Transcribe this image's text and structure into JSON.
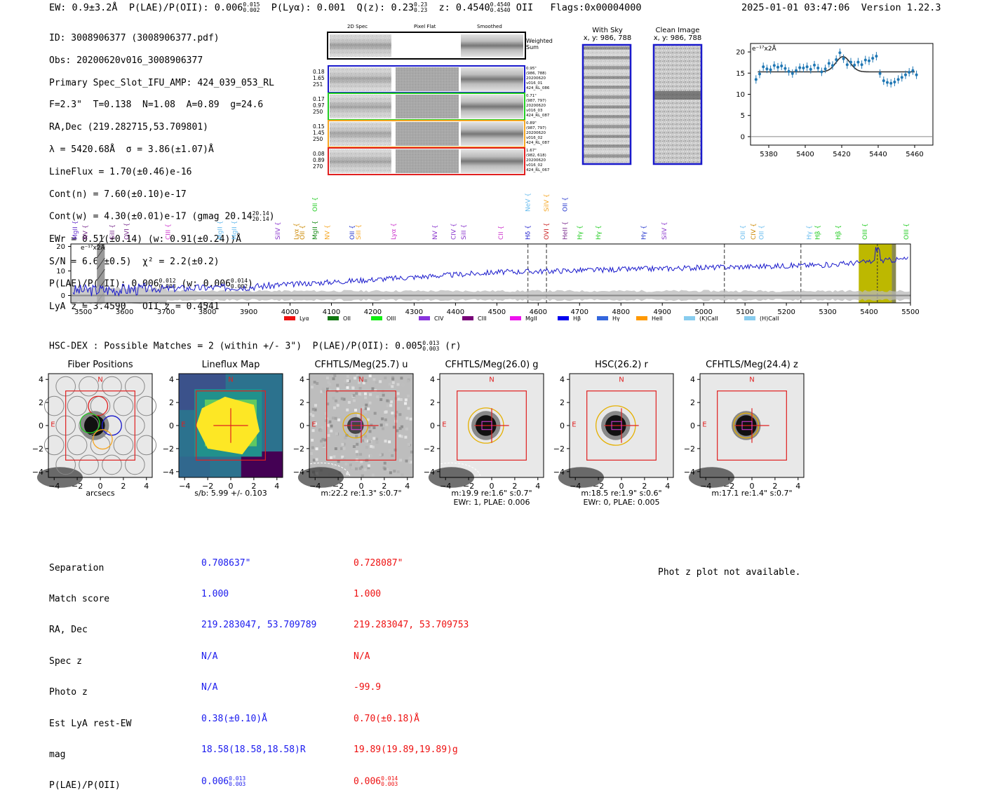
{
  "header": {
    "ew": "EW: 0.9±3.2Å",
    "plae_label": "P(LAE)/P(OII): 0.006",
    "plae_sup": "0.015",
    "plae_sub": "0.002",
    "plya": "P(Lyα): 0.001",
    "q_label": "Q(z): 0.23",
    "q_sup": "0.23",
    "q_sub": "0.23",
    "z_label": "z: 0.4540",
    "z_sup": "0.4540",
    "z_sub": "0.4540",
    "z_line": "OII",
    "flags": "Flags:0x00004000",
    "timestamp": "2025-01-01 03:47:06",
    "version": "Version 1.22.3"
  },
  "info": {
    "id": "ID: 3008906377 (3008906377.pdf)",
    "obs": "Obs: 20200620v016_3008906377",
    "primary": "Primary Spec_Slot_IFU_AMP: 424_039_053_RL",
    "fit": "F=2.3\"  T=0.138  N=1.08  A=0.89  g=24.6",
    "radec": "RA,Dec (219.282715,53.709801)",
    "lambda": "λ = 5420.68Å  σ = 3.86(±1.07)Å",
    "lineflux": "LineFlux = 1.70(±0.46)e-16",
    "contn": "Cont(n) = 7.60(±0.10)e-17",
    "contw": "Cont(w) = 4.30(±0.01)e-17 (gmag 20.14",
    "contw_sup": "20.14",
    "contw_sub": "20.14",
    "contw_end": ")",
    "ewr": "EWr = 0.51(±0.14) (w: 0.91(±0.24))Å",
    "sn": "S/N = 6.6(±0.5)  χ² = 2.2(±0.2)",
    "plae_a": "P(LAE)/P(OII): 0.006",
    "plae_a_sup": "0.012",
    "plae_a_sub": "0.003",
    "plae_b": "(w: 0.006",
    "plae_b_sup": "0.014",
    "plae_b_sub": "0.002",
    "plae_b_end": ")",
    "lya": "LyA z = 3.4590   OII z = 0.4541"
  },
  "spec2d": {
    "col_labels": [
      "2D Spec",
      "Pixel Flat",
      "Smoothed"
    ],
    "weighted": "Weighted Sum",
    "rows": [
      {
        "stats": [
          "0.18",
          "1.65",
          "251"
        ],
        "color": "#1a1acc",
        "note": [
          "0.95\"",
          "(986, 788)",
          "20200620",
          "v016_01",
          "424_RL_086"
        ]
      },
      {
        "stats": [
          "0.17",
          "0.97",
          "250"
        ],
        "color": "#22cc22",
        "note": [
          "0.71\"",
          "(987, 797)",
          "20200620",
          "v016_03",
          "424_RL_087"
        ]
      },
      {
        "stats": [
          "0.15",
          "1.45",
          "250"
        ],
        "color": "#f5a623",
        "note": [
          "0.89\"",
          "(987, 797)",
          "20200620",
          "v016_02",
          "424_RL_087"
        ]
      },
      {
        "stats": [
          "0.08",
          "0.89",
          "270"
        ],
        "color": "#e02020",
        "note": [
          "1.67\"",
          "(982, 618)",
          "20200620",
          "v016_02",
          "424_RL_067"
        ]
      }
    ]
  },
  "stamps": {
    "with_sky": "With Sky",
    "with_sky_xy": "x, y: 986, 788",
    "clean": "Clean Image",
    "clean_xy": "x, y: 986, 788"
  },
  "zoom_plot": {
    "ylabel": "e⁻¹⁷x2Å",
    "yticks": [
      "0",
      "5",
      "10",
      "15",
      "20"
    ],
    "xticks": [
      "5380",
      "5400",
      "5420",
      "5440",
      "5460"
    ],
    "xrange": [
      5370,
      5470
    ],
    "yrange": [
      -2,
      22
    ],
    "points": [
      [
        5373,
        13.5
      ],
      [
        5375,
        14.8
      ],
      [
        5377,
        16.5
      ],
      [
        5379,
        16.0
      ],
      [
        5381,
        15.8
      ],
      [
        5383,
        16.8
      ],
      [
        5385,
        16.4
      ],
      [
        5387,
        16.7
      ],
      [
        5389,
        16.1
      ],
      [
        5391,
        15.4
      ],
      [
        5393,
        14.9
      ],
      [
        5395,
        15.6
      ],
      [
        5397,
        16.3
      ],
      [
        5399,
        16.2
      ],
      [
        5401,
        16.5
      ],
      [
        5403,
        15.9
      ],
      [
        5405,
        16.9
      ],
      [
        5407,
        16.2
      ],
      [
        5409,
        15.3
      ],
      [
        5411,
        16.0
      ],
      [
        5413,
        17.3
      ],
      [
        5415,
        16.8
      ],
      [
        5417,
        18.2
      ],
      [
        5419,
        19.8
      ],
      [
        5421,
        18.4
      ],
      [
        5423,
        17.0
      ],
      [
        5425,
        17.6
      ],
      [
        5427,
        16.9
      ],
      [
        5429,
        17.6
      ],
      [
        5431,
        17.0
      ],
      [
        5433,
        18.1
      ],
      [
        5435,
        17.9
      ],
      [
        5437,
        18.5
      ],
      [
        5439,
        19.0
      ],
      [
        5441,
        14.9
      ],
      [
        5443,
        13.2
      ],
      [
        5445,
        12.8
      ],
      [
        5447,
        12.6
      ],
      [
        5449,
        12.9
      ],
      [
        5451,
        13.5
      ],
      [
        5453,
        14.0
      ],
      [
        5455,
        14.6
      ],
      [
        5457,
        15.2
      ],
      [
        5459,
        15.6
      ],
      [
        5461,
        14.6
      ]
    ],
    "fit_base": 15.3,
    "fit_amp": 3.6,
    "fit_center": 5420.7,
    "fit_sigma": 3.86
  },
  "full_spectrum": {
    "ylabel": "e⁻¹⁷x2Å",
    "yticks": [
      "0",
      "10",
      "20"
    ],
    "xticks": [
      "3500",
      "3600",
      "3700",
      "3800",
      "3900",
      "4000",
      "4100",
      "4200",
      "4300",
      "4400",
      "4500",
      "4600",
      "4700",
      "4800",
      "4900",
      "5000",
      "5100",
      "5200",
      "5300",
      "5400",
      "5500"
    ],
    "xrange": [
      3470,
      5500
    ],
    "yrange": [
      -3,
      21
    ],
    "lines_top": [
      {
        "label": "MgII",
        "w": 3480,
        "color": "#6633cc",
        "row": 0
      },
      {
        "label": "NV",
        "w": 3505,
        "color": "#7b2d8e",
        "row": 0
      },
      {
        "label": "SiII",
        "w": 3570,
        "color": "#7b2d8e",
        "row": 0
      },
      {
        "label": "OVI",
        "w": 3605,
        "color": "#7b2d8e",
        "row": 0
      },
      {
        "label": "CIII",
        "w": 3705,
        "color": "#cc33cc",
        "row": 0
      },
      {
        "label": "MgII",
        "w": 3830,
        "color": "#66bbee",
        "row": 0
      },
      {
        "label": "MgII",
        "w": 3865,
        "color": "#66bbee",
        "row": 0
      },
      {
        "label": "SiIV",
        "w": 3970,
        "color": "#8833cc",
        "row": 0
      },
      {
        "label": "Lyα",
        "w": 4015,
        "color": "#cc8800",
        "row": 0
      },
      {
        "label": "OII",
        "w": 4030,
        "color": "#cc8800",
        "row": 0
      },
      {
        "label": "MgII",
        "w": 4060,
        "color": "#118811",
        "row": 0
      },
      {
        "label": "OII",
        "w": 4060,
        "color": "#22cc22",
        "row": 1
      },
      {
        "label": "NV",
        "w": 4090,
        "color": "#f5a623",
        "row": 0
      },
      {
        "label": "OII",
        "w": 4150,
        "color": "#2233cc",
        "row": 0
      },
      {
        "label": "SiII",
        "w": 4165,
        "color": "#f5a623",
        "row": 0
      },
      {
        "label": "Lyα",
        "w": 4250,
        "color": "#cc33cc",
        "row": 0
      },
      {
        "label": "NV",
        "w": 4350,
        "color": "#8833cc",
        "row": 0
      },
      {
        "label": "CIV",
        "w": 4395,
        "color": "#8833cc",
        "row": 0
      },
      {
        "label": "SiII",
        "w": 4420,
        "color": "#8833cc",
        "row": 0
      },
      {
        "label": "CII",
        "w": 4510,
        "color": "#cc33cc",
        "row": 0
      },
      {
        "label": "Hδ",
        "w": 4575,
        "color": "#1a1acc",
        "row": 0
      },
      {
        "label": "NeV",
        "w": 4575,
        "color": "#66bbee",
        "row": 1
      },
      {
        "label": "OVI",
        "w": 4620,
        "color": "#cc2222",
        "row": 0
      },
      {
        "label": "SiIV",
        "w": 4620,
        "color": "#f5a623",
        "row": 1
      },
      {
        "label": "HeII",
        "w": 4665,
        "color": "#7b2d8e",
        "row": 0
      },
      {
        "label": "OII",
        "w": 4665,
        "color": "#2233cc",
        "row": 1
      },
      {
        "label": "Hγ",
        "w": 4700,
        "color": "#22cc22",
        "row": 0
      },
      {
        "label": "Hγ",
        "w": 4745,
        "color": "#22cc22",
        "row": 0
      },
      {
        "label": "Hγ",
        "w": 4855,
        "color": "#2233cc",
        "row": 0
      },
      {
        "label": "SiIV",
        "w": 4905,
        "color": "#8833cc",
        "row": 0
      },
      {
        "label": "OII",
        "w": 5095,
        "color": "#66bbee",
        "row": 0
      },
      {
        "label": "CIV",
        "w": 5120,
        "color": "#cc8800",
        "row": 0
      },
      {
        "label": "OII",
        "w": 5140,
        "color": "#66bbee",
        "row": 0
      },
      {
        "label": "Hγ",
        "w": 5255,
        "color": "#66bbee",
        "row": 0
      },
      {
        "label": "Hβ",
        "w": 5275,
        "color": "#22cc22",
        "row": 0
      },
      {
        "label": "Hβ",
        "w": 5325,
        "color": "#22cc22",
        "row": 0
      },
      {
        "label": "OIII",
        "w": 5390,
        "color": "#22cc22",
        "row": 0
      },
      {
        "label": "OIII",
        "w": 5490,
        "color": "#22cc22",
        "row": 0
      }
    ],
    "dashed": [
      4575,
      4620,
      5050,
      5235
    ],
    "legend": [
      {
        "label": "Lyα",
        "color": "#ee1111"
      },
      {
        "label": "OII",
        "color": "#117711"
      },
      {
        "label": "OIII",
        "color": "#11ee11"
      },
      {
        "label": "CIV",
        "color": "#8833dd"
      },
      {
        "label": "CIII",
        "color": "#770077"
      },
      {
        "label": "MgII",
        "color": "#ee11ee"
      },
      {
        "label": "Hβ",
        "color": "#0000ee"
      },
      {
        "label": "Hγ",
        "color": "#3366dd"
      },
      {
        "label": "HeII",
        "color": "#ff9900"
      },
      {
        "label": "(K)CaII",
        "color": "#88ccee"
      },
      {
        "label": "(H)CaII",
        "color": "#88ccee"
      }
    ]
  },
  "hsc": {
    "title": "HSC-DEX : Possible Matches = 2 (within +/- 3\")  P(LAE)/P(OII): 0.005",
    "sup": "0.013",
    "sub": "0.003",
    "band": "(r)"
  },
  "cutouts": [
    {
      "title": "Fiber Positions",
      "cap1": "arcsecs",
      "cap2": "",
      "kind": "fiber"
    },
    {
      "title": "Lineflux Map",
      "cap1": "s/b: 5.99 +/- 0.103",
      "cap2": "",
      "kind": "flux"
    },
    {
      "title": "CFHTLS/Meg(25.7) u",
      "cap1": "m:22.2  re:1.3\"  s:0.7\"",
      "cap2": "",
      "kind": "noisy"
    },
    {
      "title": "CFHTLS/Meg(26.0) g",
      "cap1": "m:19.9  re:1.6\"  s:0.7\"",
      "cap2": "EWr: 1, PLAE: 0.006",
      "kind": "g"
    },
    {
      "title": "HSC(26.2) r",
      "cap1": "m:18.5  re:1.9\"  s:0.6\"",
      "cap2": "EWr: 0, PLAE: 0.005",
      "kind": "r"
    },
    {
      "title": "CFHTLS/Meg(24.4) z",
      "cap1": "m:17.1  re:1.4\"  s:0.7\"",
      "cap2": "",
      "kind": "z"
    }
  ],
  "cutout_ticks": [
    "4",
    "2",
    "0",
    "−2",
    "−4"
  ],
  "cutout_xticks": [
    "−4",
    "−2",
    "0",
    "2",
    "4"
  ],
  "compass": {
    "n": "N",
    "e": "E"
  },
  "matches": {
    "labels": [
      "Separation",
      "Match score",
      "RA, Dec",
      "Spec z",
      "Photo z",
      "Est LyA rest-EW",
      "mag",
      "P(LAE)/P(OII)"
    ],
    "m1": {
      "color": "#1a1aee",
      "sep": "0.708637\"",
      "score": "1.000",
      "radec": "219.283047, 53.709789",
      "specz": "N/A",
      "photoz": "N/A",
      "ew": "0.38(±0.10)Å",
      "mag": "18.58(18.58,18.58)R",
      "plae": "0.006",
      "sup": "0.013",
      "sub": "0.003"
    },
    "m2": {
      "color": "#ee1111",
      "sep": "0.728087\"",
      "score": "1.000",
      "radec": "219.283047, 53.709753",
      "specz": "N/A",
      "photoz": "-99.9",
      "ew": "0.70(±0.18)Å",
      "mag": "19.89(19.89,19.89)g",
      "plae": "0.006",
      "sup": "0.014",
      "sub": "0.003"
    }
  },
  "photz": "Phot z plot not available."
}
